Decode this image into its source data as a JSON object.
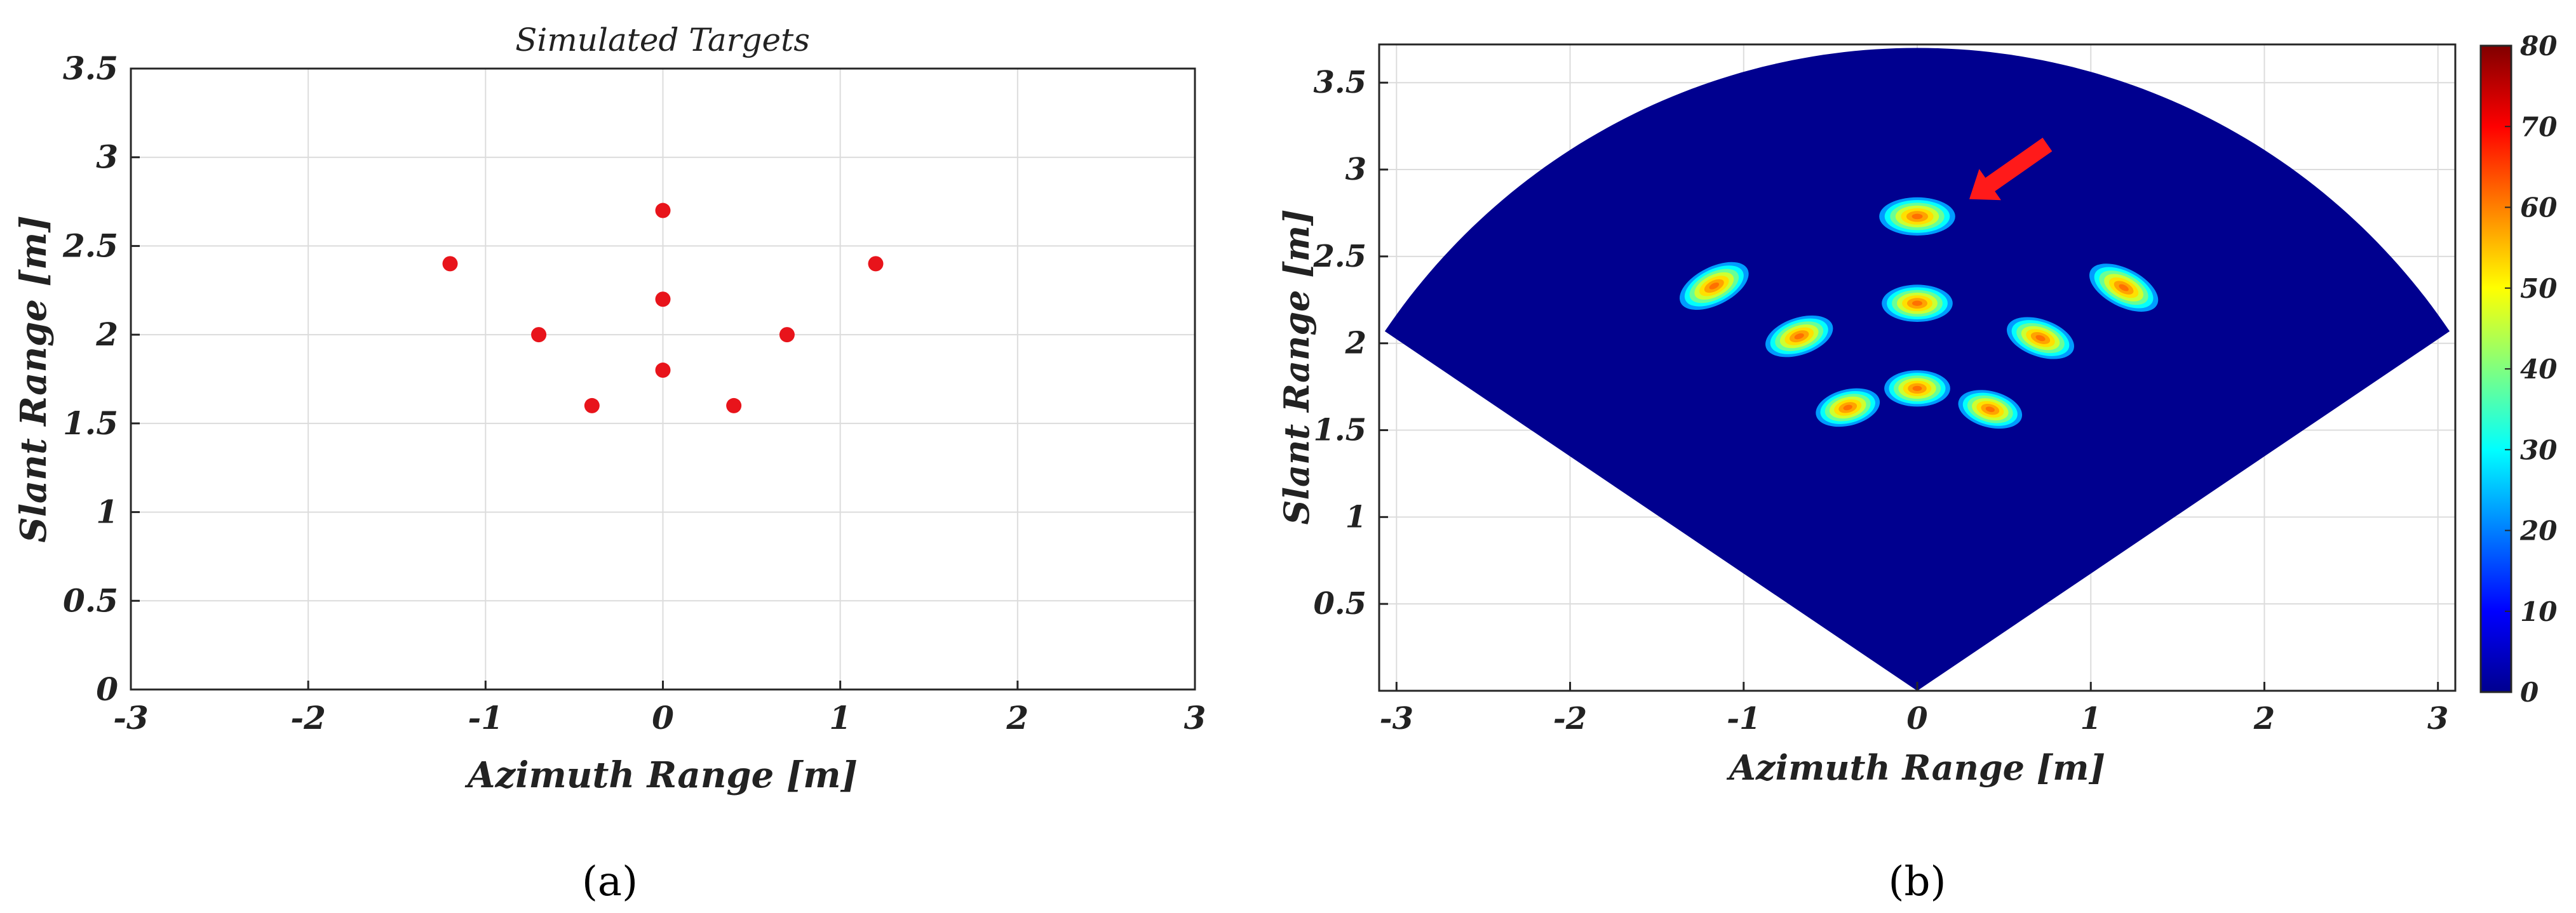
{
  "colors": {
    "target_marker": "#e8141b",
    "fan_fill": "#00008f",
    "arrow": "#ff1a1a",
    "grid": "#dcdcdc",
    "axis": "#262626"
  },
  "chart_data": [
    {
      "panel": "a",
      "type": "scatter",
      "title": "Simulated Targets",
      "xlabel": "Azimuth Range [m]",
      "ylabel": "Slant Range [m]",
      "xlim": [
        -3,
        3
      ],
      "ylim": [
        0,
        3.5
      ],
      "xticks": [
        -3,
        -2,
        -1,
        0,
        1,
        2,
        3
      ],
      "yticks": [
        0,
        0.5,
        1,
        1.5,
        2,
        2.5,
        3,
        3.5
      ],
      "xtick_labels": [
        "-3",
        "-2",
        "-1",
        "0",
        "1",
        "2",
        "3"
      ],
      "ytick_labels": [
        "0",
        "0.5",
        "1",
        "1.5",
        "2",
        "2.5",
        "3",
        "3.5"
      ],
      "grid": true,
      "points": [
        {
          "x": 0,
          "y": 2.7
        },
        {
          "x": -1.2,
          "y": 2.4
        },
        {
          "x": 1.2,
          "y": 2.4
        },
        {
          "x": 0,
          "y": 2.2
        },
        {
          "x": -0.7,
          "y": 2.0
        },
        {
          "x": 0.7,
          "y": 2.0
        },
        {
          "x": 0,
          "y": 1.8
        },
        {
          "x": -0.4,
          "y": 1.6
        },
        {
          "x": 0.4,
          "y": 1.6
        }
      ],
      "caption": "(a)"
    },
    {
      "panel": "b",
      "type": "heatmap",
      "xlabel": "Azimuth Range [m]",
      "ylabel": "Slant Range [m]",
      "xlim": [
        -3.1,
        3.1
      ],
      "ylim": [
        0,
        3.72
      ],
      "xticks": [
        -3,
        -2,
        -1,
        0,
        1,
        2,
        3
      ],
      "yticks": [
        0.5,
        1,
        1.5,
        2,
        2.5,
        3,
        3.5
      ],
      "xtick_labels": [
        "-3",
        "-2",
        "-1",
        "0",
        "1",
        "2",
        "3"
      ],
      "ytick_labels": [
        "0.5",
        "1",
        "1.5",
        "2",
        "2.5",
        "3",
        "3.5"
      ],
      "grid": true,
      "fan": {
        "max_range": 3.7,
        "half_angle_deg": 56
      },
      "colorbar": {
        "colormap": "jet",
        "min": 0,
        "max": 80,
        "ticks": [
          0,
          10,
          20,
          30,
          40,
          50,
          60,
          70,
          80
        ],
        "tick_labels": [
          "0",
          "10",
          "20",
          "30",
          "40",
          "50",
          "60",
          "70",
          "80"
        ]
      },
      "blobs": [
        {
          "x": 0,
          "y": 2.73,
          "peak": 62
        },
        {
          "x": -1.17,
          "y": 2.33,
          "peak": 62
        },
        {
          "x": 1.19,
          "y": 2.32,
          "peak": 62
        },
        {
          "x": 0,
          "y": 2.23,
          "peak": 62
        },
        {
          "x": -0.68,
          "y": 2.04,
          "peak": 62
        },
        {
          "x": 0.71,
          "y": 2.03,
          "peak": 62
        },
        {
          "x": 0,
          "y": 1.74,
          "peak": 62
        },
        {
          "x": -0.4,
          "y": 1.63,
          "peak": 62
        },
        {
          "x": 0.42,
          "y": 1.62,
          "peak": 62
        }
      ],
      "annotation": {
        "type": "arrow",
        "points_to": {
          "x": 0.3,
          "y": 2.83
        }
      },
      "caption": "(b)"
    }
  ]
}
